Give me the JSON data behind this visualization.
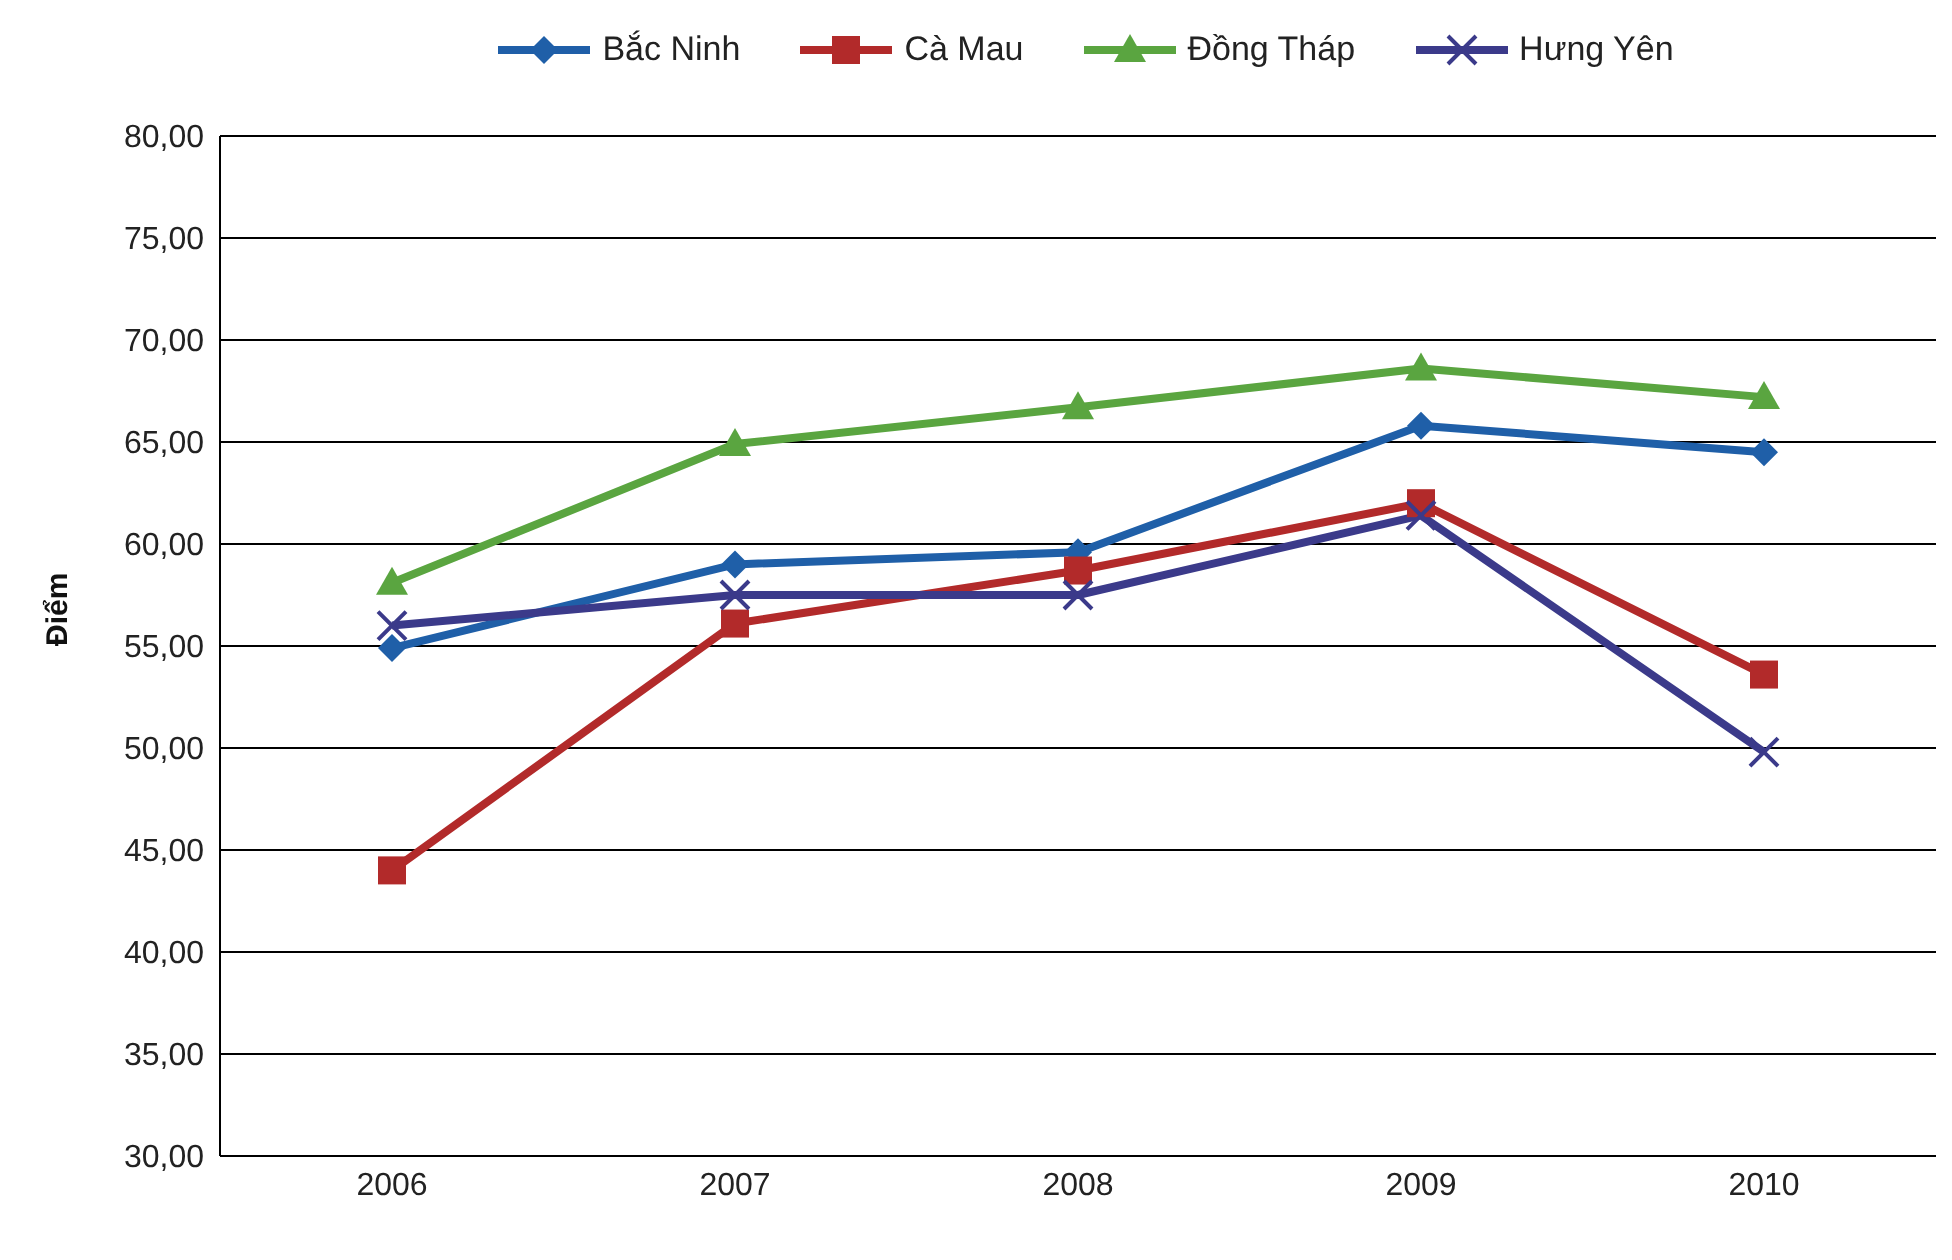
{
  "chart_data": {
    "type": "line",
    "ylabel": "Điểm",
    "categories": [
      "2006",
      "2007",
      "2008",
      "2009",
      "2010"
    ],
    "series": [
      {
        "name": "Bắc Ninh",
        "color": "#1f5fa8",
        "marker": "diamond",
        "values": [
          54.9,
          59.0,
          59.6,
          65.8,
          64.5
        ]
      },
      {
        "name": "Cà Mau",
        "color": "#b22a2a",
        "marker": "square",
        "values": [
          44.0,
          56.1,
          58.7,
          62.0,
          53.6
        ]
      },
      {
        "name": "Đồng Tháp",
        "color": "#5aa540",
        "marker": "triangle",
        "values": [
          58.1,
          64.9,
          66.7,
          68.6,
          67.2
        ]
      },
      {
        "name": "Hưng Yên",
        "color": "#3b3a8a",
        "marker": "cross",
        "values": [
          56.0,
          57.5,
          57.5,
          61.4,
          49.8
        ]
      }
    ],
    "ylim": [
      30,
      80
    ],
    "yticks": [
      {
        "value": 30,
        "label": "30,00"
      },
      {
        "value": 35,
        "label": "35,00"
      },
      {
        "value": 40,
        "label": "40,00"
      },
      {
        "value": 45,
        "label": "45,00"
      },
      {
        "value": 50,
        "label": "50,00"
      },
      {
        "value": 55,
        "label": "55,00"
      },
      {
        "value": 60,
        "label": "60,00"
      },
      {
        "value": 65,
        "label": "65,00"
      },
      {
        "value": 70,
        "label": "70,00"
      },
      {
        "value": 75,
        "label": "75,00"
      },
      {
        "value": 80,
        "label": "80,00"
      }
    ],
    "grid": "y",
    "legend": "top",
    "line_style": "solid"
  }
}
